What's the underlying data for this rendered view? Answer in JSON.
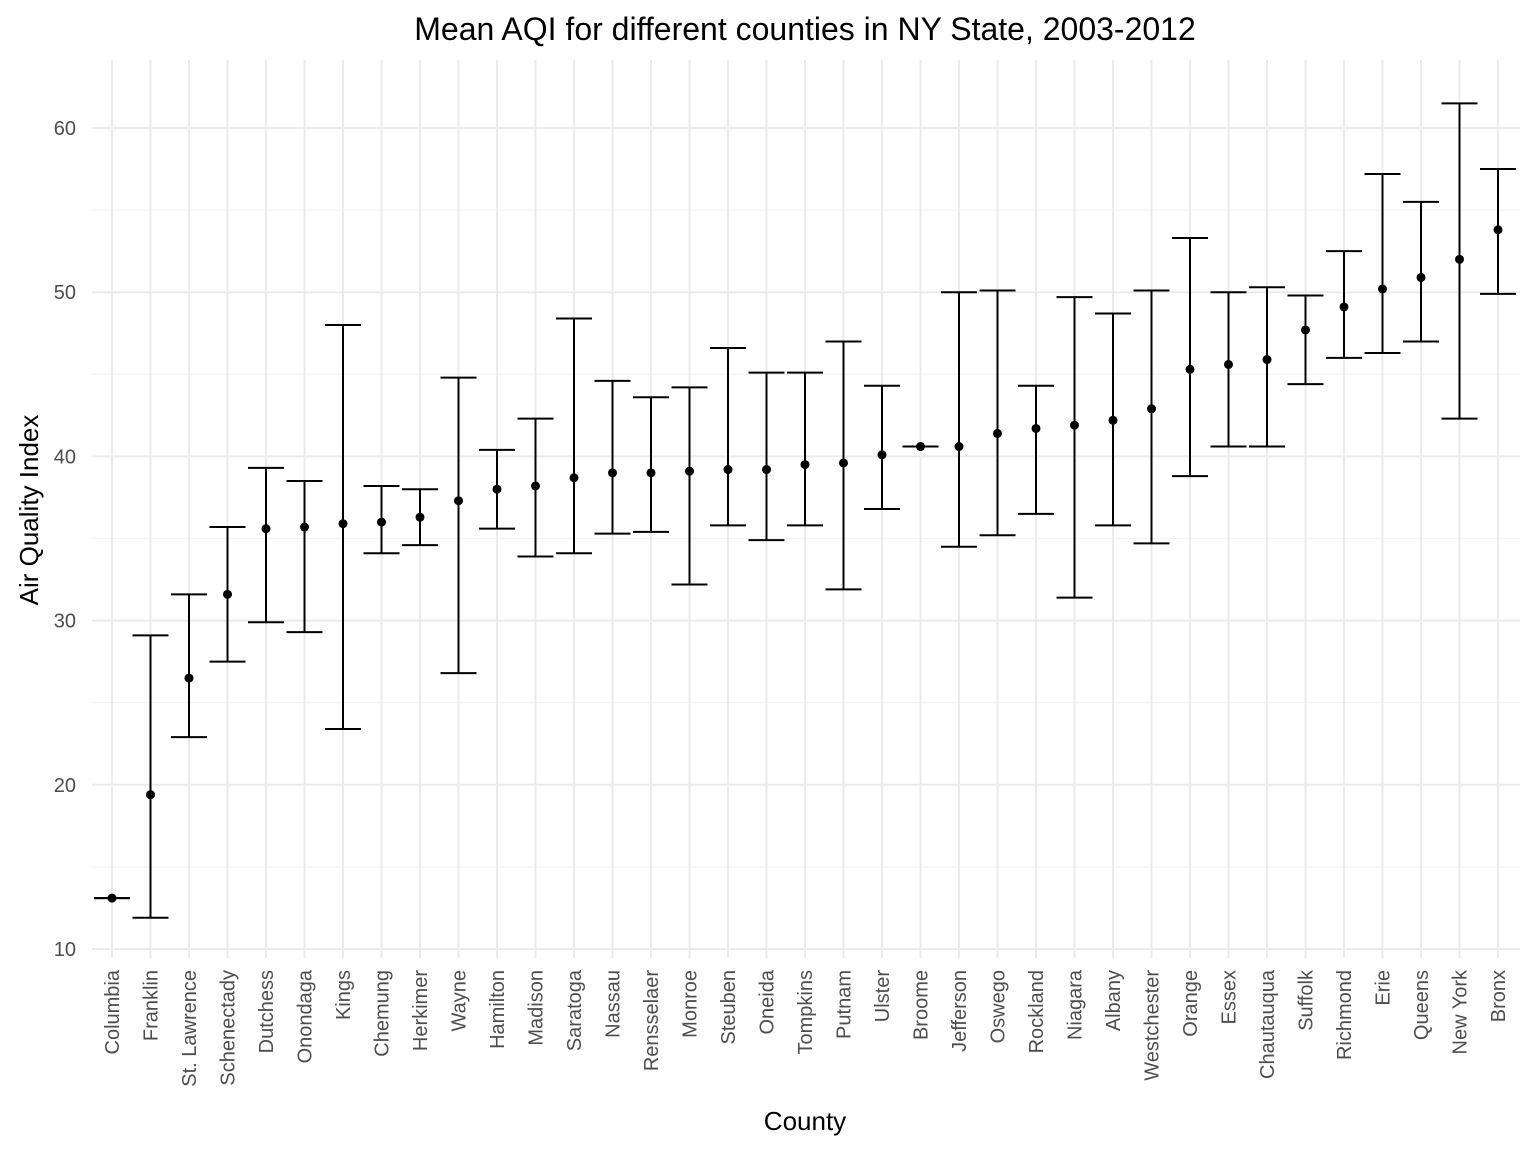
{
  "chart_data": {
    "type": "scatter",
    "title": "Mean AQI for different counties in NY State, 2003-2012",
    "xlabel": "County",
    "ylabel": "Air Quality Index",
    "ylim": [
      10,
      64
    ],
    "yticks": [
      10,
      20,
      30,
      40,
      50,
      60
    ],
    "grid": true,
    "categories": [
      "Columbia",
      "Franklin",
      "St. Lawrence",
      "Schenectady",
      "Dutchess",
      "Onondaga",
      "Kings",
      "Chemung",
      "Herkimer",
      "Wayne",
      "Hamilton",
      "Madison",
      "Saratoga",
      "Nassau",
      "Rensselaer",
      "Monroe",
      "Steuben",
      "Oneida",
      "Tompkins",
      "Putnam",
      "Ulster",
      "Broome",
      "Jefferson",
      "Oswego",
      "Rockland",
      "Niagara",
      "Albany",
      "Westchester",
      "Orange",
      "Essex",
      "Chautauqua",
      "Suffolk",
      "Richmond",
      "Erie",
      "Queens",
      "New York",
      "Bronx"
    ],
    "series": [
      {
        "mean": [
          13.1,
          19.4,
          26.5,
          31.6,
          35.6,
          35.7,
          35.9,
          36.0,
          36.3,
          37.3,
          38.0,
          38.2,
          38.7,
          39.0,
          39.0,
          39.1,
          39.2,
          39.2,
          39.5,
          39.6,
          40.1,
          40.6,
          40.6,
          41.4,
          41.7,
          41.9,
          42.2,
          42.9,
          45.3,
          45.6,
          45.9,
          47.7,
          49.1,
          50.2,
          50.9,
          52.0,
          53.8
        ],
        "lower": [
          13.1,
          11.9,
          22.9,
          27.5,
          29.9,
          29.3,
          23.4,
          34.1,
          34.6,
          26.8,
          35.6,
          33.9,
          34.1,
          35.3,
          35.4,
          32.2,
          35.8,
          34.9,
          35.8,
          31.9,
          36.8,
          40.6,
          34.5,
          35.2,
          36.5,
          31.4,
          35.8,
          34.7,
          38.8,
          40.6,
          40.6,
          44.4,
          46.0,
          46.3,
          47.0,
          42.3,
          49.9
        ],
        "upper": [
          13.1,
          29.1,
          31.6,
          35.7,
          39.3,
          38.5,
          48.0,
          38.2,
          38.0,
          44.8,
          40.4,
          42.3,
          48.4,
          44.6,
          43.6,
          44.2,
          46.6,
          45.1,
          45.1,
          47.0,
          44.3,
          40.6,
          50.0,
          50.1,
          44.3,
          49.7,
          48.7,
          50.1,
          53.3,
          50.0,
          50.3,
          49.8,
          52.5,
          57.2,
          55.5,
          61.5,
          57.5
        ]
      }
    ]
  }
}
